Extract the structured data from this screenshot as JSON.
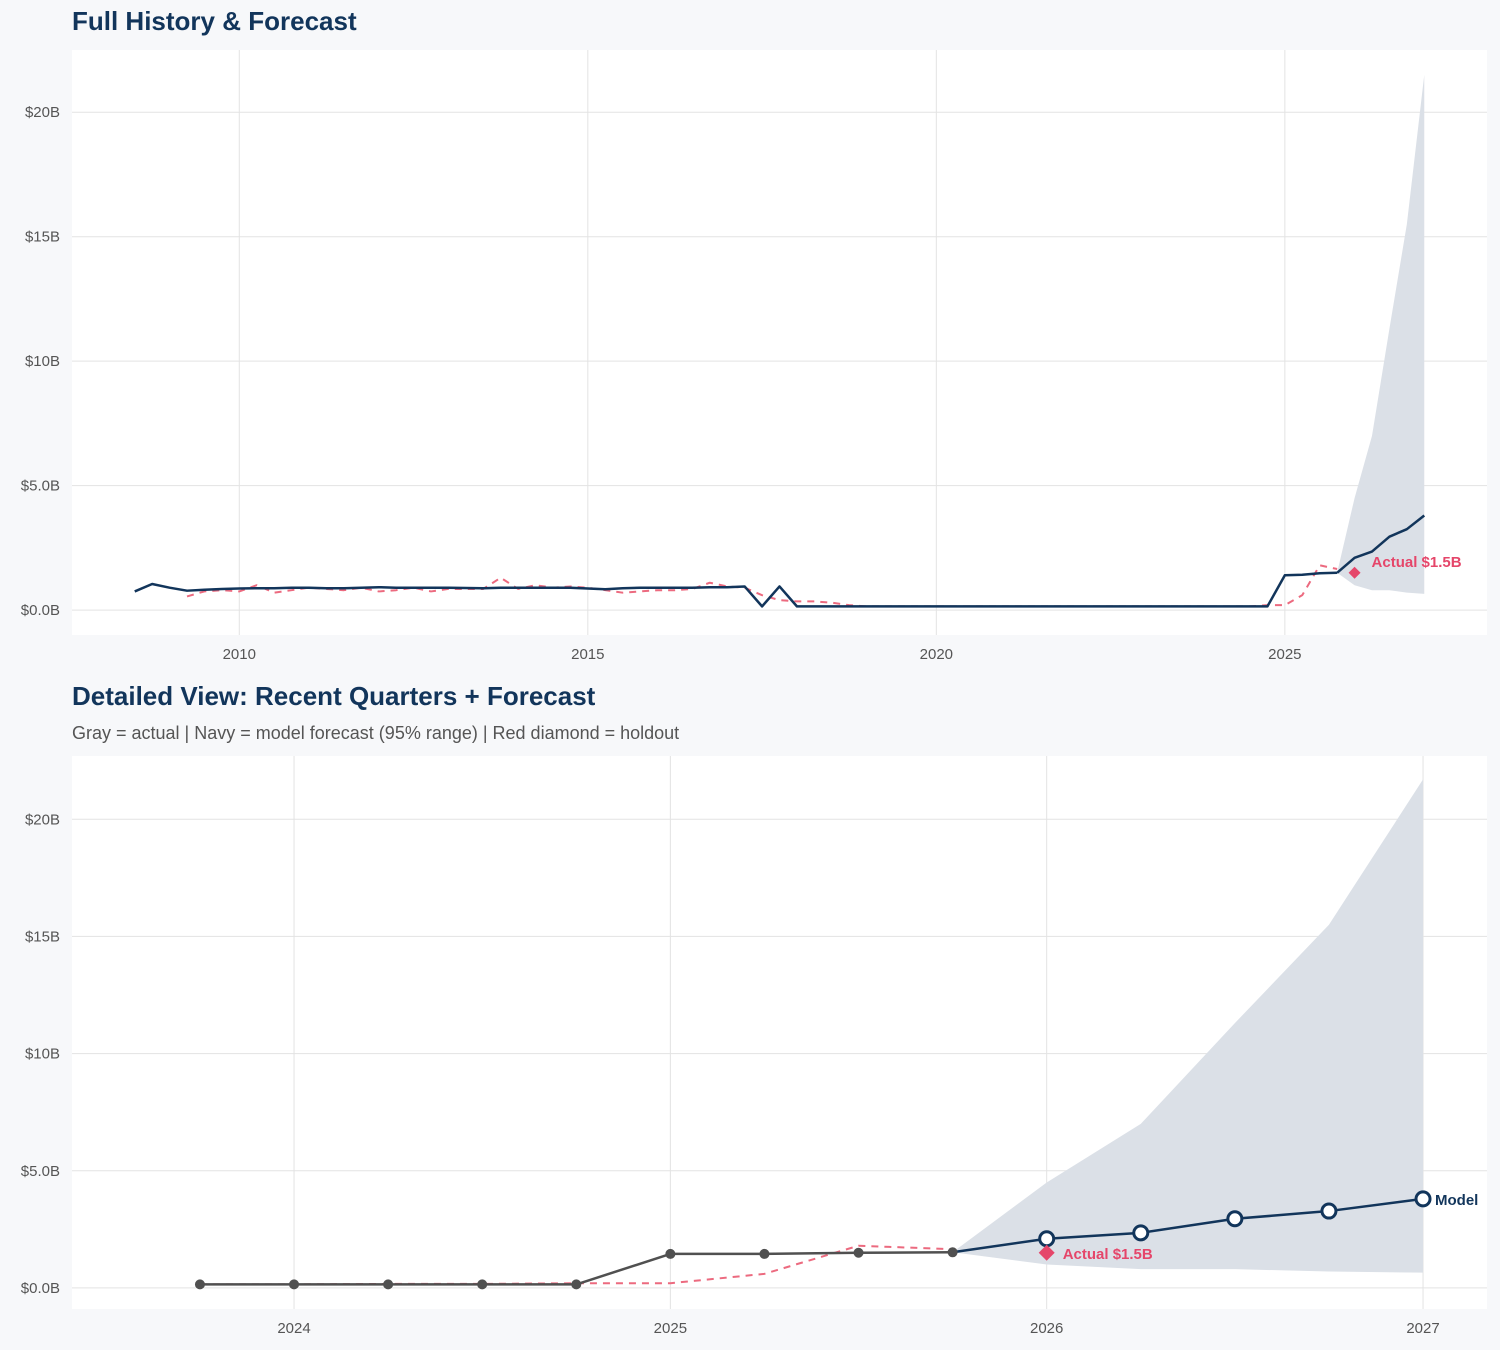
{
  "colors": {
    "actual": "#505050",
    "model": "#12355b",
    "fitted": "#ec6a7f",
    "holdout": "#e5466a",
    "band": "#dbe0e7",
    "grid": "#e3e3e3"
  },
  "chart_data": [
    {
      "type": "line",
      "title": "Full History & Forecast",
      "xlim": [
        2007.6,
        2027.9
      ],
      "ylim": [
        -1,
        22.5
      ],
      "x_ticks": [
        2010,
        2015,
        2020,
        2025
      ],
      "x_tick_labels": [
        "2010",
        "2015",
        "2020",
        "2025"
      ],
      "y_ticks": [
        0,
        5,
        10,
        15,
        20
      ],
      "y_tick_labels": [
        "$0.0B",
        "$5.0B",
        "$10B",
        "$15B",
        "$20B"
      ],
      "grid": true,
      "series": [
        {
          "role": "history",
          "x_start": 2008.5,
          "x_step": 0.25,
          "values": [
            0.75,
            1.05,
            0.9,
            0.78,
            0.82,
            0.85,
            0.87,
            0.88,
            0.88,
            0.9,
            0.9,
            0.88,
            0.88,
            0.9,
            0.92,
            0.9,
            0.9,
            0.9,
            0.9,
            0.89,
            0.88,
            0.9,
            0.9,
            0.9,
            0.9,
            0.9,
            0.87,
            0.84,
            0.88,
            0.9,
            0.9,
            0.9,
            0.9,
            0.92,
            0.92,
            0.95,
            0.15,
            0.95,
            0.15,
            0.15,
            0.15,
            0.15,
            0.15,
            0.15,
            0.15,
            0.15,
            0.15,
            0.15,
            0.15,
            0.15,
            0.15,
            0.15,
            0.15,
            0.15,
            0.15,
            0.15,
            0.15,
            0.15,
            0.15,
            0.15,
            0.15,
            0.15,
            0.15,
            0.15,
            0.15,
            0.15,
            1.4,
            1.42,
            1.48,
            1.5
          ]
        },
        {
          "role": "fitted",
          "x_start": 2009.25,
          "x_step": 0.25,
          "values": [
            0.55,
            0.75,
            0.8,
            0.75,
            1.0,
            0.7,
            0.8,
            0.9,
            0.85,
            0.8,
            0.9,
            0.75,
            0.8,
            0.9,
            0.75,
            0.85,
            0.85,
            0.85,
            1.3,
            0.85,
            1.0,
            0.9,
            0.95,
            0.9,
            0.8,
            0.7,
            0.75,
            0.8,
            0.8,
            0.85,
            1.1,
            0.95,
            0.9,
            0.6,
            0.4,
            0.35,
            0.35,
            0.3,
            0.2,
            0.15,
            0.15,
            0.15,
            0.15,
            0.15,
            0.15,
            0.15,
            0.15,
            0.15,
            0.15,
            0.15,
            0.15,
            0.15,
            0.15,
            0.15,
            0.15,
            0.15,
            0.15,
            0.15,
            0.15,
            0.15,
            0.15,
            0.15,
            0.2,
            0.2,
            0.6,
            1.8,
            1.65
          ]
        },
        {
          "role": "forecast",
          "x": [
            2025.75,
            2026.0,
            2026.25,
            2026.5,
            2026.75,
            2027.0
          ],
          "values": [
            1.5,
            2.1,
            2.35,
            2.95,
            3.25,
            3.8
          ],
          "lower": [
            1.5,
            1.0,
            0.8,
            0.8,
            0.7,
            0.65
          ],
          "upper": [
            1.5,
            4.5,
            7.0,
            11.3,
            15.5,
            21.5
          ]
        }
      ],
      "holdout": {
        "x": 2026.0,
        "value": 1.5,
        "label": "Actual $1.5B"
      }
    },
    {
      "type": "line",
      "title": "Detailed View: Recent Quarters + Forecast",
      "subtitle": "Gray = actual  |  Navy = model forecast (95% range)  |  Red diamond = holdout",
      "xlim": [
        2023.41,
        2027.17
      ],
      "ylim": [
        -0.9,
        22.7
      ],
      "x_ticks": [
        2024,
        2025,
        2026,
        2027
      ],
      "x_tick_labels": [
        "2024",
        "2025",
        "2026",
        "2027"
      ],
      "y_ticks": [
        0,
        5,
        10,
        15,
        20
      ],
      "y_tick_labels": [
        "$0.0B",
        "$5.0B",
        "$10B",
        "$15B",
        "$20B"
      ],
      "grid": true,
      "series": [
        {
          "role": "history",
          "x": [
            2023.75,
            2024.0,
            2024.25,
            2024.5,
            2024.75,
            2025.0,
            2025.25,
            2025.5,
            2025.75
          ],
          "values": [
            0.15,
            0.15,
            0.15,
            0.15,
            0.15,
            1.45,
            1.45,
            1.5,
            1.52
          ]
        },
        {
          "role": "fitted",
          "x": [
            2023.75,
            2024.0,
            2024.25,
            2024.5,
            2024.75,
            2025.0,
            2025.25,
            2025.5,
            2025.75
          ],
          "values": [
            0.15,
            0.15,
            0.17,
            0.17,
            0.2,
            0.2,
            0.6,
            1.8,
            1.65
          ]
        },
        {
          "role": "forecast",
          "name": "Model",
          "x": [
            2025.75,
            2026.0,
            2026.25,
            2026.5,
            2026.75,
            2027.0
          ],
          "values": [
            1.52,
            2.1,
            2.35,
            2.95,
            3.28,
            3.8
          ],
          "lower": [
            1.52,
            1.0,
            0.8,
            0.8,
            0.7,
            0.65
          ],
          "upper": [
            1.52,
            4.5,
            7.0,
            11.3,
            15.5,
            21.7
          ]
        }
      ],
      "holdout": {
        "x": 2026.0,
        "value": 1.5,
        "label": "Actual $1.5B"
      }
    }
  ]
}
